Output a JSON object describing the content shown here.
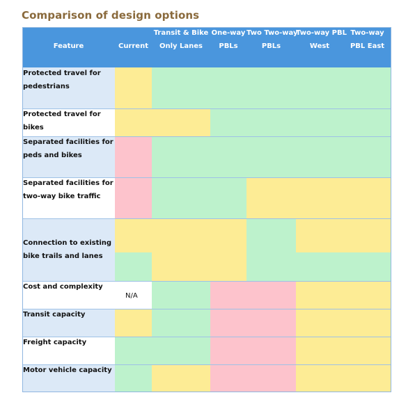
{
  "title": "Comparison of design options",
  "header": {
    "feature": "Feature",
    "columns": [
      {
        "line1": "",
        "line2": "Current"
      },
      {
        "line1": "Transit & Bike",
        "line2": "Only Lanes"
      },
      {
        "line1": "One-way",
        "line2": "PBLs"
      },
      {
        "line1": "Two Two-way",
        "line2": "PBLs"
      },
      {
        "line1": "Two-way PBL",
        "line2": "West"
      },
      {
        "line1": "Two-way",
        "line2": "PBL East"
      }
    ]
  },
  "rows": [
    {
      "label_line1": "Protected travel for",
      "label_line2": "pedestrians",
      "ratings": [
        "yellow",
        "green",
        "green",
        "green",
        "green",
        "green"
      ]
    },
    {
      "label_line1": "Protected travel for bikes",
      "label_line2": "",
      "ratings": [
        "yellow",
        "yellow",
        "green",
        "green",
        "green",
        "green"
      ]
    },
    {
      "label_line1": "Separated facilities for",
      "label_line2": "peds and bikes",
      "ratings": [
        "red",
        "green",
        "green",
        "green",
        "green",
        "green"
      ]
    },
    {
      "label_line1": "Separated facilities for",
      "label_line2": "two-way bike traffic",
      "ratings": [
        "red",
        "green",
        "green",
        "yellow",
        "yellow",
        "yellow"
      ]
    },
    {
      "label_line1": "Connection to existing",
      "label_line2": "bike trails and lanes",
      "ratings_upper": [
        "yellow",
        "yellow",
        "yellow",
        "green",
        "yellow",
        "yellow"
      ],
      "ratings_lower": [
        "green",
        "yellow",
        "yellow",
        "green",
        "green",
        "green"
      ]
    },
    {
      "label_line1": "Cost and complexity",
      "label_line2": "",
      "current_text": "N/A",
      "ratings": [
        "none",
        "green",
        "red",
        "red",
        "yellow",
        "yellow"
      ]
    },
    {
      "label_line1": "Transit capacity",
      "label_line2": "",
      "ratings": [
        "yellow",
        "green",
        "red",
        "red",
        "yellow",
        "yellow"
      ]
    },
    {
      "label_line1": "Freight capacity",
      "label_line2": "",
      "ratings": [
        "green",
        "green",
        "red",
        "red",
        "yellow",
        "yellow"
      ]
    },
    {
      "label_line1": "Motor vehicle capacity",
      "label_line2": "",
      "ratings": [
        "green",
        "yellow",
        "red",
        "red",
        "yellow",
        "yellow"
      ]
    }
  ],
  "colors": {
    "green": "#bdf2cc",
    "yellow": "#fdec95",
    "red": "#fdc3cc",
    "header": "#4a96dd",
    "title": "#8a6a3c"
  }
}
